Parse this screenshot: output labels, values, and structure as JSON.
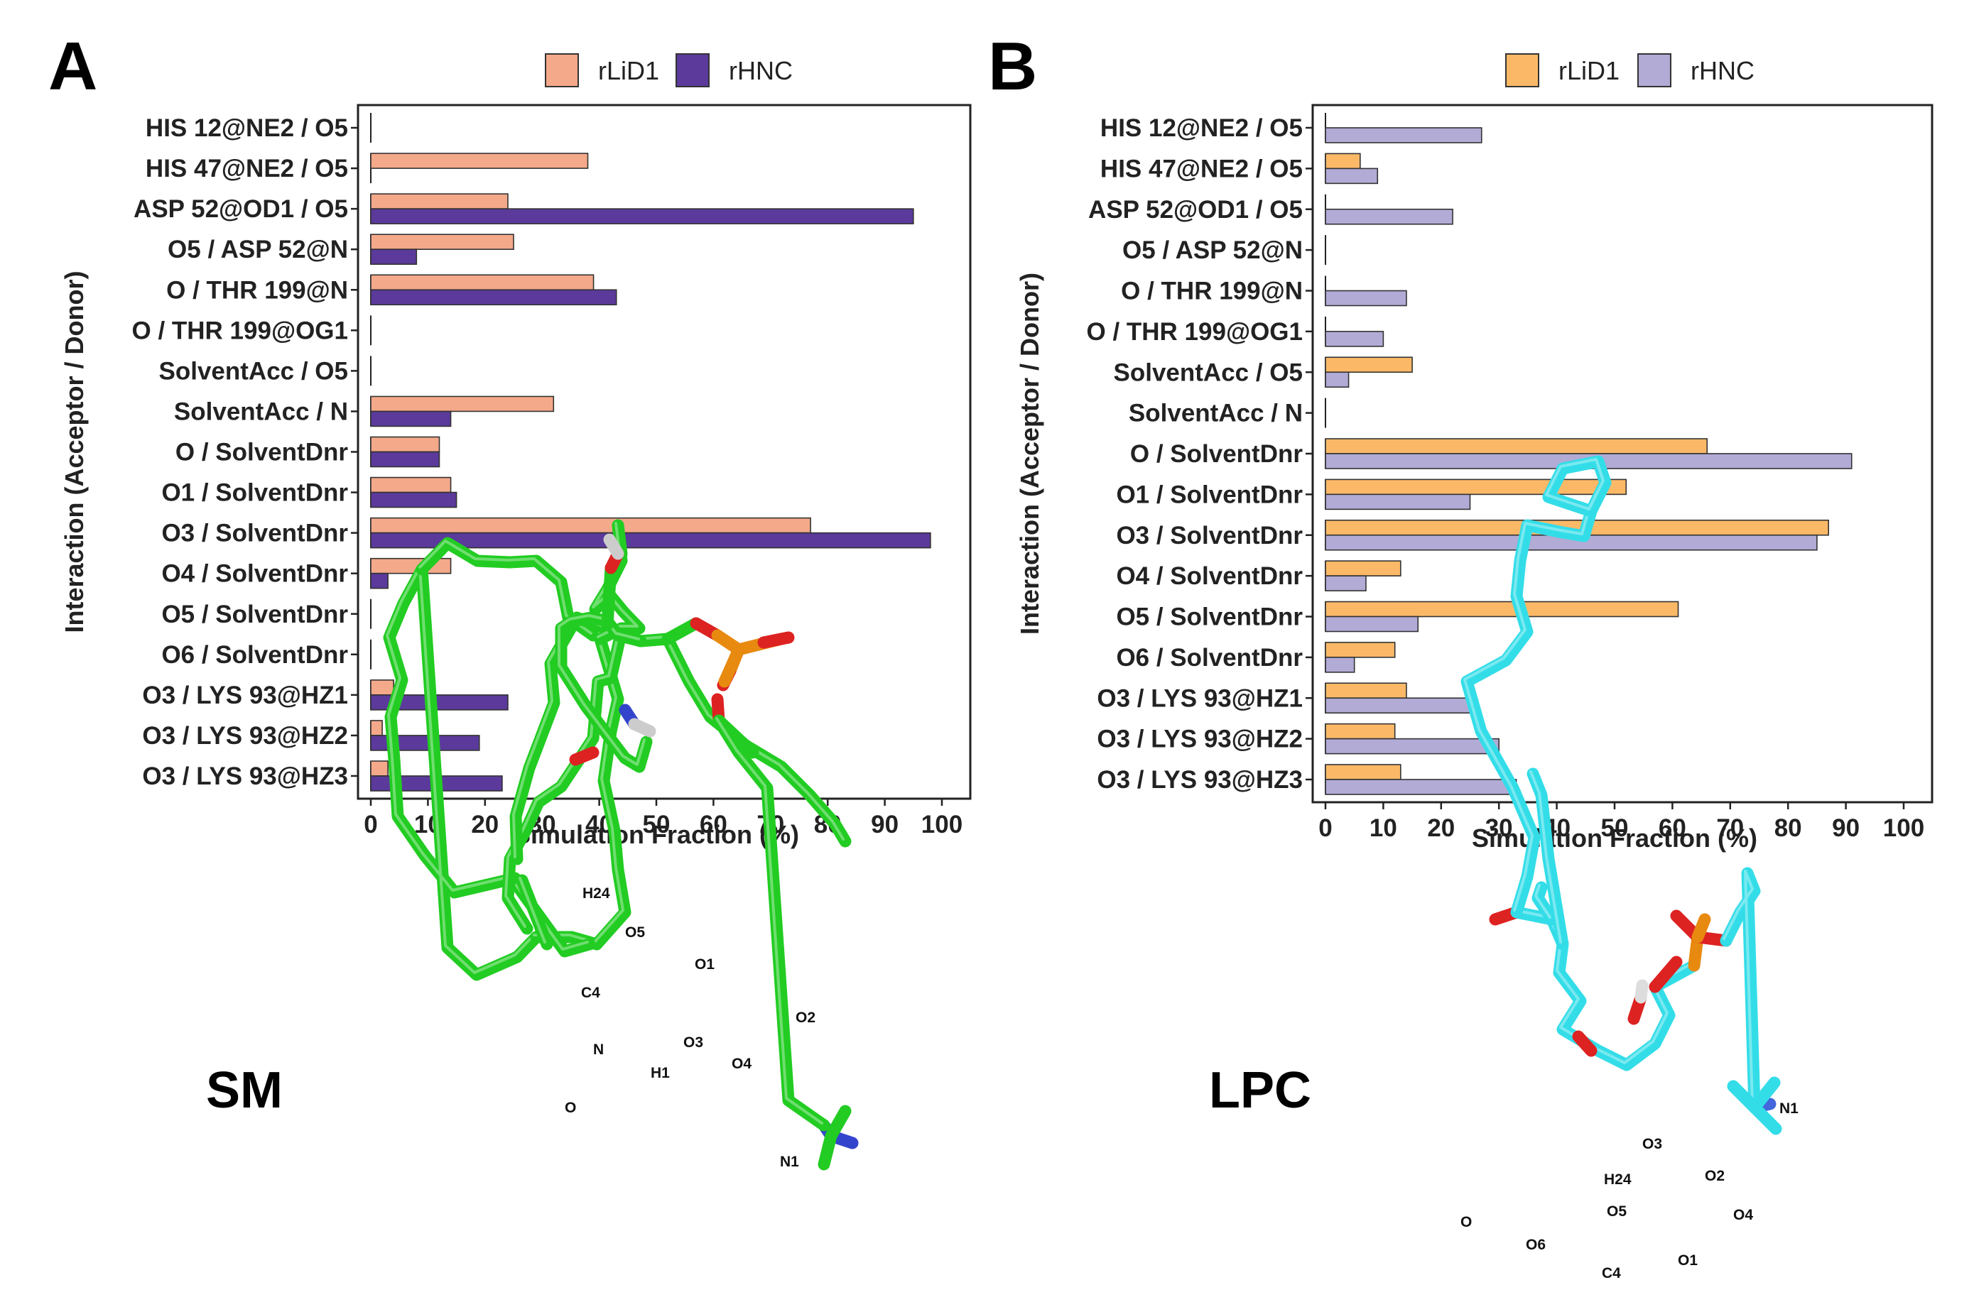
{
  "chart_data": [
    {
      "panel": "A",
      "type": "bar",
      "orientation": "horizontal",
      "xlabel": "Simulation Fraction (%)",
      "ylabel": "Interaction (Acceptor / Donor)",
      "xlim": [
        0,
        100
      ],
      "xticks": [
        0,
        10,
        20,
        30,
        40,
        50,
        60,
        70,
        80,
        90,
        100
      ],
      "legend_position": "top",
      "categories": [
        "HIS 12@NE2 / O5",
        "HIS 47@NE2 / O5",
        "ASP 52@OD1 / O5",
        "O5 / ASP 52@N",
        "O / THR 199@N",
        "O / THR 199@OG1",
        "SolventAcc / O5",
        "SolventAcc / N",
        "O / SolventDnr",
        "O1 / SolventDnr",
        "O3 / SolventDnr",
        "O4 / SolventDnr",
        "O5 / SolventDnr",
        "O6 / SolventDnr",
        "O3 / LYS 93@HZ1",
        "O3 / LYS 93@HZ2",
        "O3 / LYS 93@HZ3"
      ],
      "series": [
        {
          "name": "rLiD1",
          "color": "#f4a98a",
          "values": [
            0,
            38,
            24,
            25,
            39,
            0,
            0,
            32,
            12,
            14,
            77,
            14,
            0,
            0,
            4,
            2,
            3
          ]
        },
        {
          "name": "rHNC",
          "color": "#5b3a9b",
          "values": [
            0,
            0,
            95,
            8,
            43,
            0,
            0,
            14,
            12,
            15,
            98,
            3,
            0,
            0,
            24,
            19,
            23
          ]
        }
      ]
    },
    {
      "panel": "B",
      "type": "bar",
      "orientation": "horizontal",
      "xlabel": "Simulation Fraction (%)",
      "ylabel": "Interaction (Acceptor / Donor)",
      "xlim": [
        0,
        100
      ],
      "xticks": [
        0,
        10,
        20,
        30,
        40,
        50,
        60,
        70,
        80,
        90,
        100
      ],
      "legend_position": "top",
      "categories": [
        "HIS 12@NE2 / O5",
        "HIS 47@NE2 / O5",
        "ASP 52@OD1 / O5",
        "O5 / ASP 52@N",
        "O / THR 199@N",
        "O / THR 199@OG1",
        "SolventAcc / O5",
        "SolventAcc / N",
        "O / SolventDnr",
        "O1 / SolventDnr",
        "O3 / SolventDnr",
        "O4 / SolventDnr",
        "O5 / SolventDnr",
        "O6 / SolventDnr",
        "O3 / LYS 93@HZ1",
        "O3 / LYS 93@HZ2",
        "O3 / LYS 93@HZ3"
      ],
      "series": [
        {
          "name": "rLiD1",
          "color": "#fbb968",
          "values": [
            0,
            6,
            0,
            0,
            0,
            0,
            15,
            0,
            66,
            52,
            87,
            13,
            61,
            12,
            14,
            12,
            13
          ]
        },
        {
          "name": "rHNC",
          "color": "#b2abd6",
          "values": [
            27,
            9,
            22,
            0,
            14,
            10,
            4,
            0,
            91,
            25,
            85,
            7,
            16,
            5,
            25,
            30,
            33
          ]
        }
      ]
    }
  ],
  "molecules": {
    "sm": {
      "name": "SM",
      "color": "#22cc22",
      "atoms": [
        "H24",
        "O5",
        "O1",
        "O2",
        "C4",
        "O3",
        "O4",
        "N",
        "H1",
        "O",
        "N1"
      ]
    },
    "lpc": {
      "name": "LPC",
      "color": "#33dde8",
      "atoms": [
        "N1",
        "O3",
        "O2",
        "H24",
        "O4",
        "O5",
        "O",
        "O6",
        "C4",
        "O1"
      ]
    }
  }
}
